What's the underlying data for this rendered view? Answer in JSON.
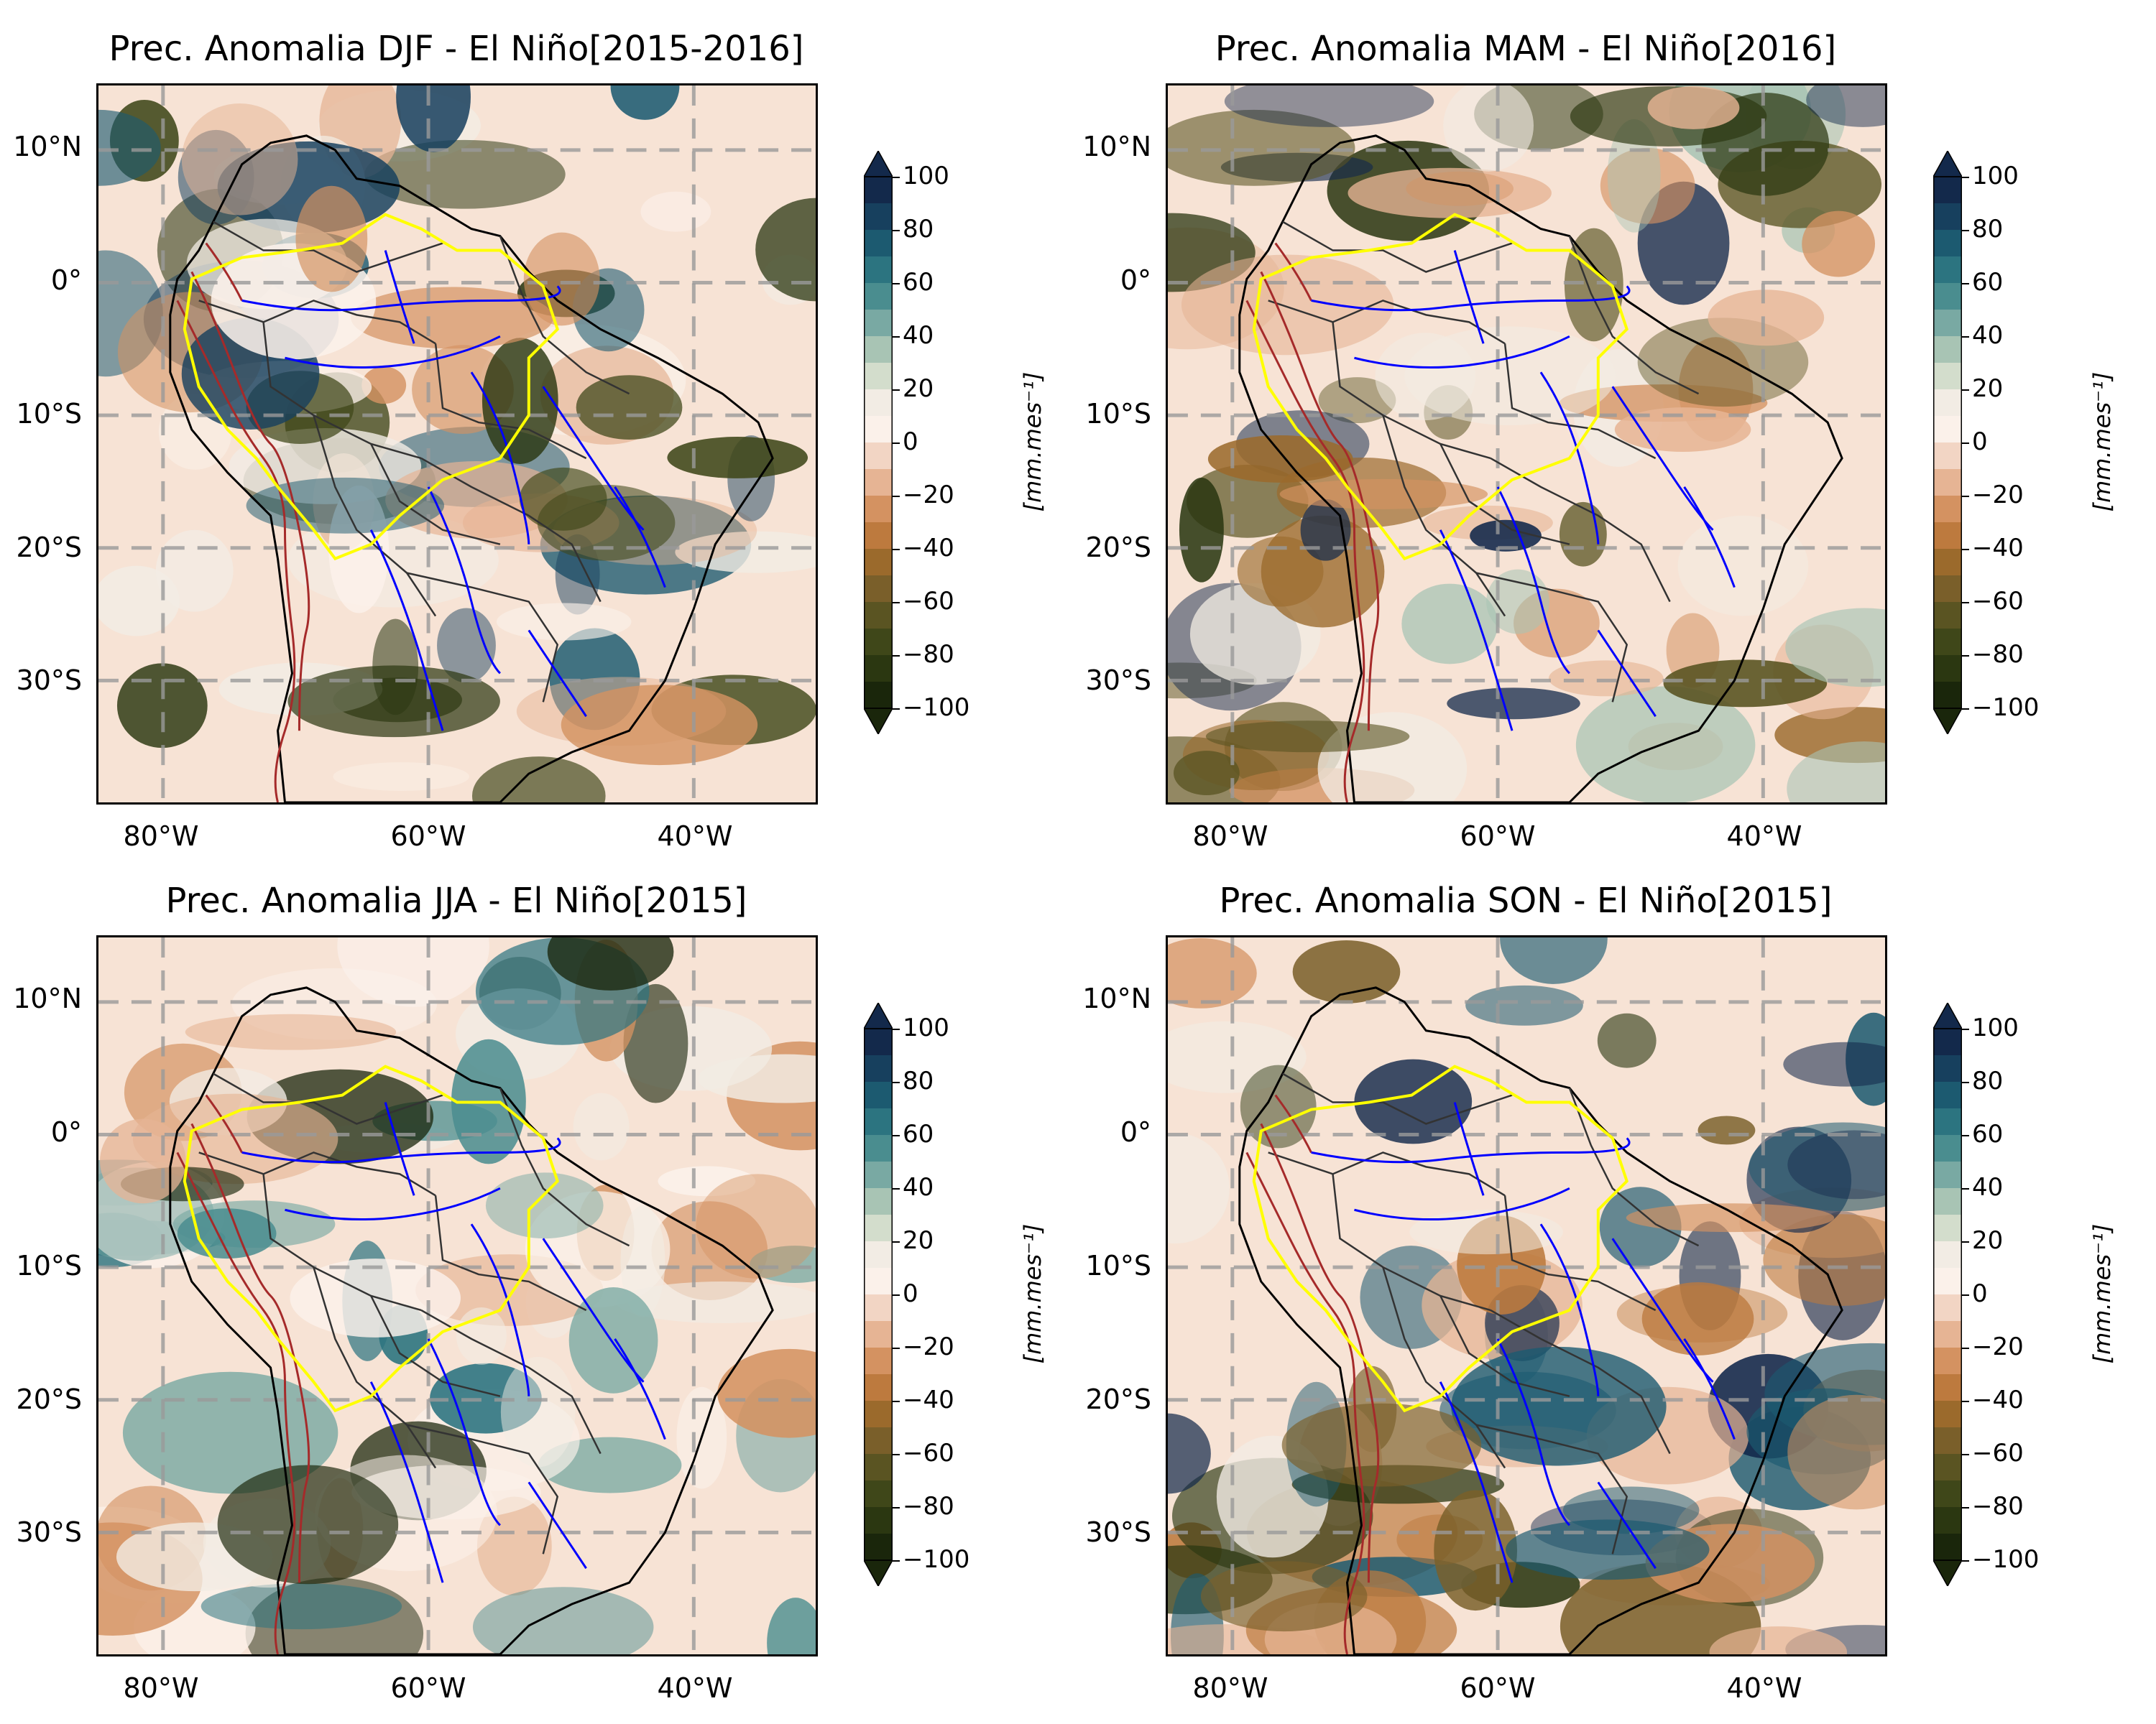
{
  "panels": [
    {
      "id": "djf",
      "title": "Prec. Anomalia DJF - El Niño[2015-2016]"
    },
    {
      "id": "mam",
      "title": "Prec. Anomalia MAM - El Niño[2016]"
    },
    {
      "id": "jja",
      "title": "Prec. Anomalia JJA - El Niño[2015]"
    },
    {
      "id": "son",
      "title": "Prec. Anomalia SON - El Niño[2015]"
    }
  ],
  "lat_labels": [
    "10°N",
    "0°",
    "10°S",
    "20°S",
    "30°S"
  ],
  "lon_labels": [
    "80°W",
    "60°W",
    "40°W"
  ],
  "colorbar": {
    "ticks": [
      "100",
      "80",
      "60",
      "40",
      "20",
      "0",
      "−20",
      "−40",
      "−60",
      "−80",
      "−100"
    ],
    "unit": "[mm.mes⁻¹]",
    "colors": [
      "#13294b",
      "#17405e",
      "#1c5a70",
      "#2c7480",
      "#4a8d8f",
      "#79a9a3",
      "#a8c4b4",
      "#d3ddcc",
      "#f2ece4",
      "#fbf1ea",
      "#f2d5c4",
      "#e6b494",
      "#d49261",
      "#bd7a3e",
      "#9b6a2c",
      "#7a5f2a",
      "#5a5422",
      "#3f4719",
      "#2b3711",
      "#1a260b"
    ]
  },
  "legend_colors": {
    "border": "#000000",
    "rivers": "#0000ff",
    "basin": "#ffff00",
    "relief": "#a52a2a"
  }
}
